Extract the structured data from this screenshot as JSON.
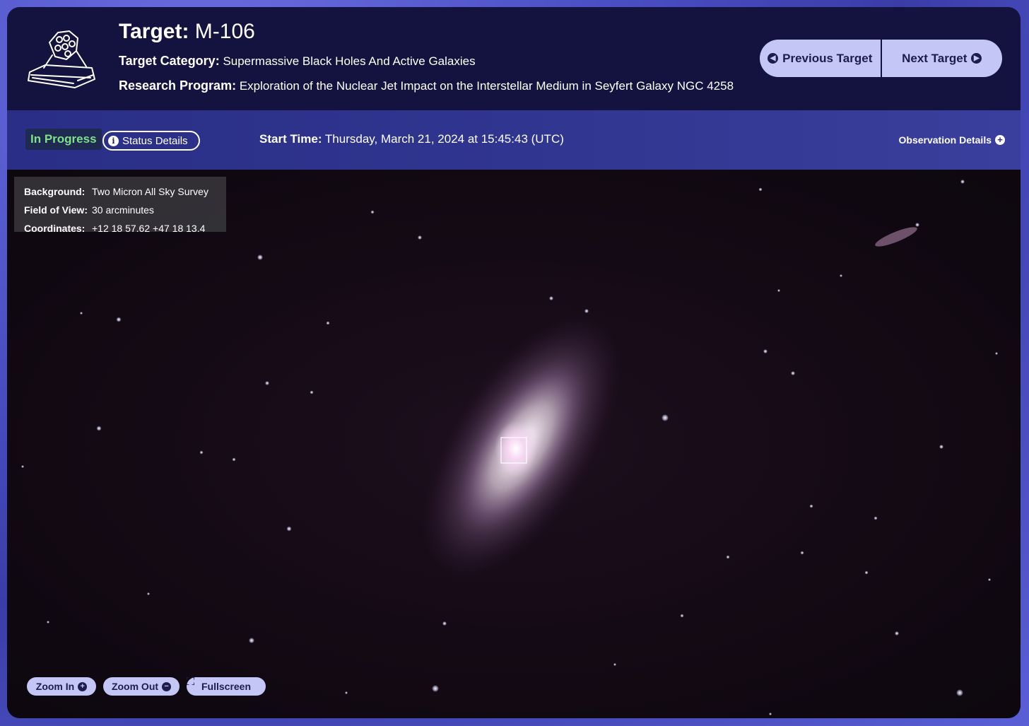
{
  "header": {
    "target_label": "Target:",
    "target_value": "M-106",
    "category_label": "Target Category:",
    "category_value": "Supermassive Black Holes And Active Galaxies",
    "program_label": "Research Program:",
    "program_value": "Exploration of the Nuclear Jet Impact on the Interstellar Medium in Seyfert Galaxy NGC 4258",
    "prev_button": "Previous Target",
    "next_button": "Next Target"
  },
  "status": {
    "badge": "In Progress",
    "details_button": "Status Details",
    "start_label": "Start Time:",
    "start_value": "Thursday, March 21, 2024 at 15:45:43 (UTC)",
    "observation_details": "Observation Details"
  },
  "viewer": {
    "background_label": "Background:",
    "background_value": "Two Micron All Sky Survey",
    "fov_label": "Field of View:",
    "fov_value": "30 arcminutes",
    "coords_label": "Coordinates:",
    "coords_value": "+12 18 57.62 +47 18 13.4",
    "zoom_in": "Zoom In",
    "zoom_out": "Zoom Out",
    "fullscreen": "Fullscreen"
  },
  "icons": {
    "telescope": "telescope-icon",
    "prev": "arrow-left-circle-icon",
    "next": "arrow-right-circle-icon",
    "info": "info-icon",
    "plus": "plus-circle-icon",
    "minus": "minus-circle-icon",
    "fullscreen": "fullscreen-icon"
  },
  "colors": {
    "panel": "#14133f",
    "accent_button": "#c4c7f6",
    "status_green": "#7fe08a"
  }
}
